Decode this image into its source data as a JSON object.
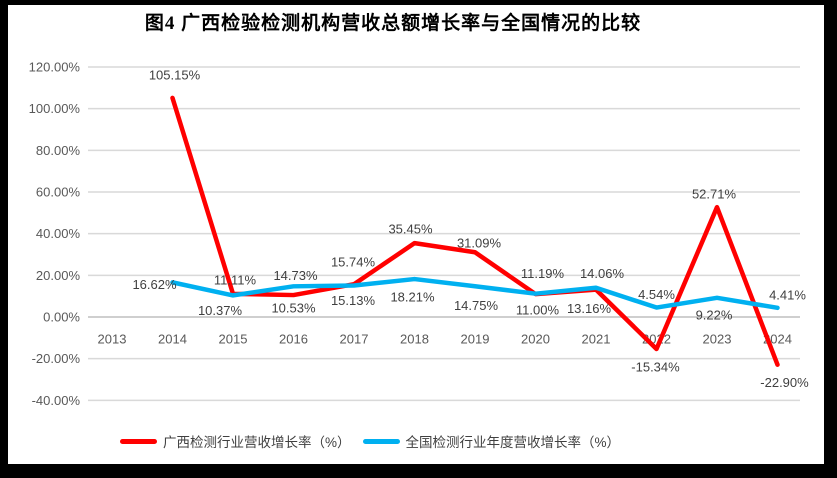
{
  "chart_data": {
    "type": "line",
    "title": "图4 广西检验检测机构营收总额增长率与全国情况的比较",
    "categories": [
      "2013",
      "2014",
      "2015",
      "2016",
      "2017",
      "2018",
      "2019",
      "2020",
      "2021",
      "2022",
      "2023",
      "2024"
    ],
    "series": [
      {
        "name": "广西检测行业营收增长率（%）",
        "color": "#FF0000",
        "start_category": "2014",
        "values": [
          105.15,
          11.11,
          10.53,
          15.74,
          35.45,
          31.09,
          11.0,
          13.16,
          -15.34,
          52.71,
          -22.9
        ],
        "labels": [
          "105.15%",
          "11.11%",
          "10.53%",
          "15.74%",
          "35.45%",
          "31.09%",
          "11.00%",
          "13.16%",
          "-15.34%",
          "52.71%",
          "-22.90%"
        ],
        "label_offsets": [
          [
            2,
            -23
          ],
          [
            2,
            -14
          ],
          [
            0,
            13
          ],
          [
            -1,
            -22
          ],
          [
            -4,
            -14
          ],
          [
            4,
            -9
          ],
          [
            2,
            16
          ],
          [
            -7,
            19
          ],
          [
            -1,
            18
          ],
          [
            -3,
            -13
          ],
          [
            7,
            18
          ]
        ]
      },
      {
        "name": "全国检测行业年度营收增长率（%）",
        "color": "#00B0F0",
        "start_category": "2014",
        "values": [
          16.62,
          10.37,
          14.73,
          15.13,
          18.21,
          14.75,
          11.19,
          14.06,
          4.54,
          9.22,
          4.41
        ],
        "labels": [
          "16.62%",
          "10.37%",
          "14.73%",
          "15.13%",
          "18.21%",
          "14.75%",
          "11.19%",
          "14.06%",
          "4.54%",
          "9.22%",
          "4.41%"
        ],
        "label_offsets": [
          [
            -18,
            2
          ],
          [
            -13,
            15
          ],
          [
            2,
            -11
          ],
          [
            -1,
            15
          ],
          [
            -2,
            18
          ],
          [
            1,
            19
          ],
          [
            7,
            -20
          ],
          [
            6,
            -14
          ],
          [
            0,
            -13
          ],
          [
            -3,
            17
          ],
          [
            10,
            -13
          ]
        ]
      }
    ],
    "y_axis": {
      "min": -40,
      "max": 120,
      "step": 20,
      "tick_labels": [
        "120.00%",
        "100.00%",
        "80.00%",
        "60.00%",
        "40.00%",
        "20.00%",
        "0.00%",
        "-20.00%",
        "-40.00%"
      ]
    },
    "x_axis": {
      "tick_labels": [
        "2013",
        "2014",
        "2015",
        "2016",
        "2017",
        "2018",
        "2019",
        "2020",
        "2021",
        "2022",
        "2023",
        "2024"
      ]
    },
    "legend_position": "bottom",
    "grid": true,
    "colors": {
      "gridline": "#D9D9D9",
      "axis_line": "#BFBFBF",
      "tick_text": "#595959",
      "data_label": "#404040",
      "frame": "#000000"
    }
  }
}
